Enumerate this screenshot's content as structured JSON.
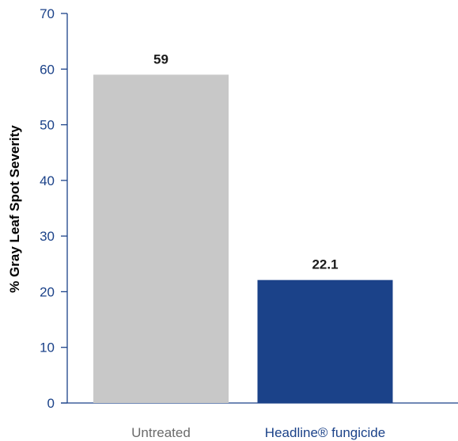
{
  "chart_data": {
    "type": "bar",
    "categories": [
      "Untreated",
      "Headline® fungicide"
    ],
    "values": [
      59,
      22.1
    ],
    "data_labels": [
      "59",
      "22.1"
    ],
    "ylabel": "% Gray Leaf Spot Severity",
    "xlabel": "",
    "title": "",
    "ylim": [
      0,
      70
    ],
    "yticks": [
      0,
      10,
      20,
      30,
      40,
      50,
      60,
      70
    ],
    "grid": false,
    "bar_colors": [
      "#c8c8c8",
      "#1b4289"
    ],
    "category_label_colors": [
      "#6b6b6b",
      "#1b4289"
    ],
    "axis_color": "#1b4289"
  }
}
